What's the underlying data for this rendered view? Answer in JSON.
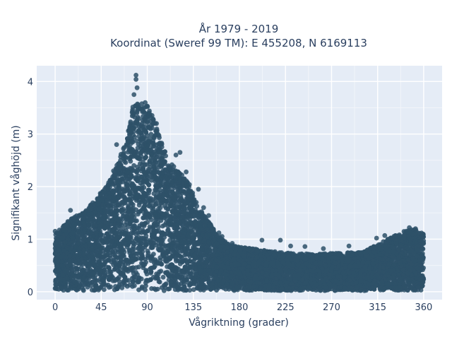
{
  "chart_data": {
    "type": "scatter",
    "title": "År 1979 - 2019",
    "subtitle": "Koordinat (Sweref 99 TM): E 455208, N 6169113",
    "xlabel": "Vågriktning (grader)",
    "ylabel": "Signifikant våghöjd (m)",
    "xlim": [
      -18,
      378
    ],
    "ylim": [
      -0.15,
      4.3
    ],
    "xticks": [
      0,
      45,
      90,
      135,
      180,
      225,
      270,
      315,
      360
    ],
    "yticks": [
      0,
      1,
      2,
      3,
      4
    ],
    "grid": true,
    "legend": "none",
    "marker_color": "#2e5169",
    "background_color": "#e5ecf6",
    "series": [
      {
        "envelope_x": [
          0,
          10,
          20,
          30,
          40,
          50,
          60,
          70,
          75,
          80,
          85,
          90,
          95,
          100,
          110,
          120,
          130,
          140,
          150,
          160,
          170,
          180,
          200,
          220,
          240,
          260,
          280,
          300,
          320,
          340,
          350,
          360
        ],
        "envelope_y_max": [
          1.1,
          1.3,
          1.45,
          1.55,
          1.8,
          2.0,
          2.4,
          2.9,
          3.5,
          3.6,
          3.6,
          3.55,
          3.35,
          3.1,
          2.5,
          2.3,
          2.1,
          1.6,
          1.35,
          1.05,
          0.9,
          0.85,
          0.8,
          0.75,
          0.72,
          0.72,
          0.74,
          0.75,
          0.95,
          1.15,
          1.2,
          1.1
        ],
        "envelope_y_min": 0.02,
        "outliers": [
          {
            "x": 79,
            "y": 4.12
          },
          {
            "x": 79,
            "y": 4.04
          },
          {
            "x": 80,
            "y": 3.88
          },
          {
            "x": 77,
            "y": 3.75
          },
          {
            "x": 88,
            "y": 3.6
          },
          {
            "x": 92,
            "y": 3.4
          },
          {
            "x": 99,
            "y": 3.2
          },
          {
            "x": 118,
            "y": 2.6
          },
          {
            "x": 122,
            "y": 2.65
          },
          {
            "x": 128,
            "y": 2.28
          },
          {
            "x": 60,
            "y": 2.8
          },
          {
            "x": 57,
            "y": 2.3
          },
          {
            "x": 48,
            "y": 1.9
          },
          {
            "x": 32,
            "y": 1.55
          },
          {
            "x": 15,
            "y": 1.55
          },
          {
            "x": 0,
            "y": 1.15
          },
          {
            "x": 140,
            "y": 1.95
          },
          {
            "x": 145,
            "y": 1.6
          },
          {
            "x": 150,
            "y": 1.45
          },
          {
            "x": 160,
            "y": 1.12
          },
          {
            "x": 163,
            "y": 1.05
          },
          {
            "x": 173,
            "y": 0.92
          },
          {
            "x": 202,
            "y": 0.98
          },
          {
            "x": 220,
            "y": 0.98
          },
          {
            "x": 230,
            "y": 0.87
          },
          {
            "x": 244,
            "y": 0.86
          },
          {
            "x": 262,
            "y": 0.82
          },
          {
            "x": 287,
            "y": 0.87
          },
          {
            "x": 314,
            "y": 1.02
          },
          {
            "x": 322,
            "y": 1.07
          },
          {
            "x": 325,
            "y": 1.0
          },
          {
            "x": 341,
            "y": 1.08
          },
          {
            "x": 346,
            "y": 1.22
          },
          {
            "x": 352,
            "y": 1.2
          }
        ]
      }
    ]
  }
}
